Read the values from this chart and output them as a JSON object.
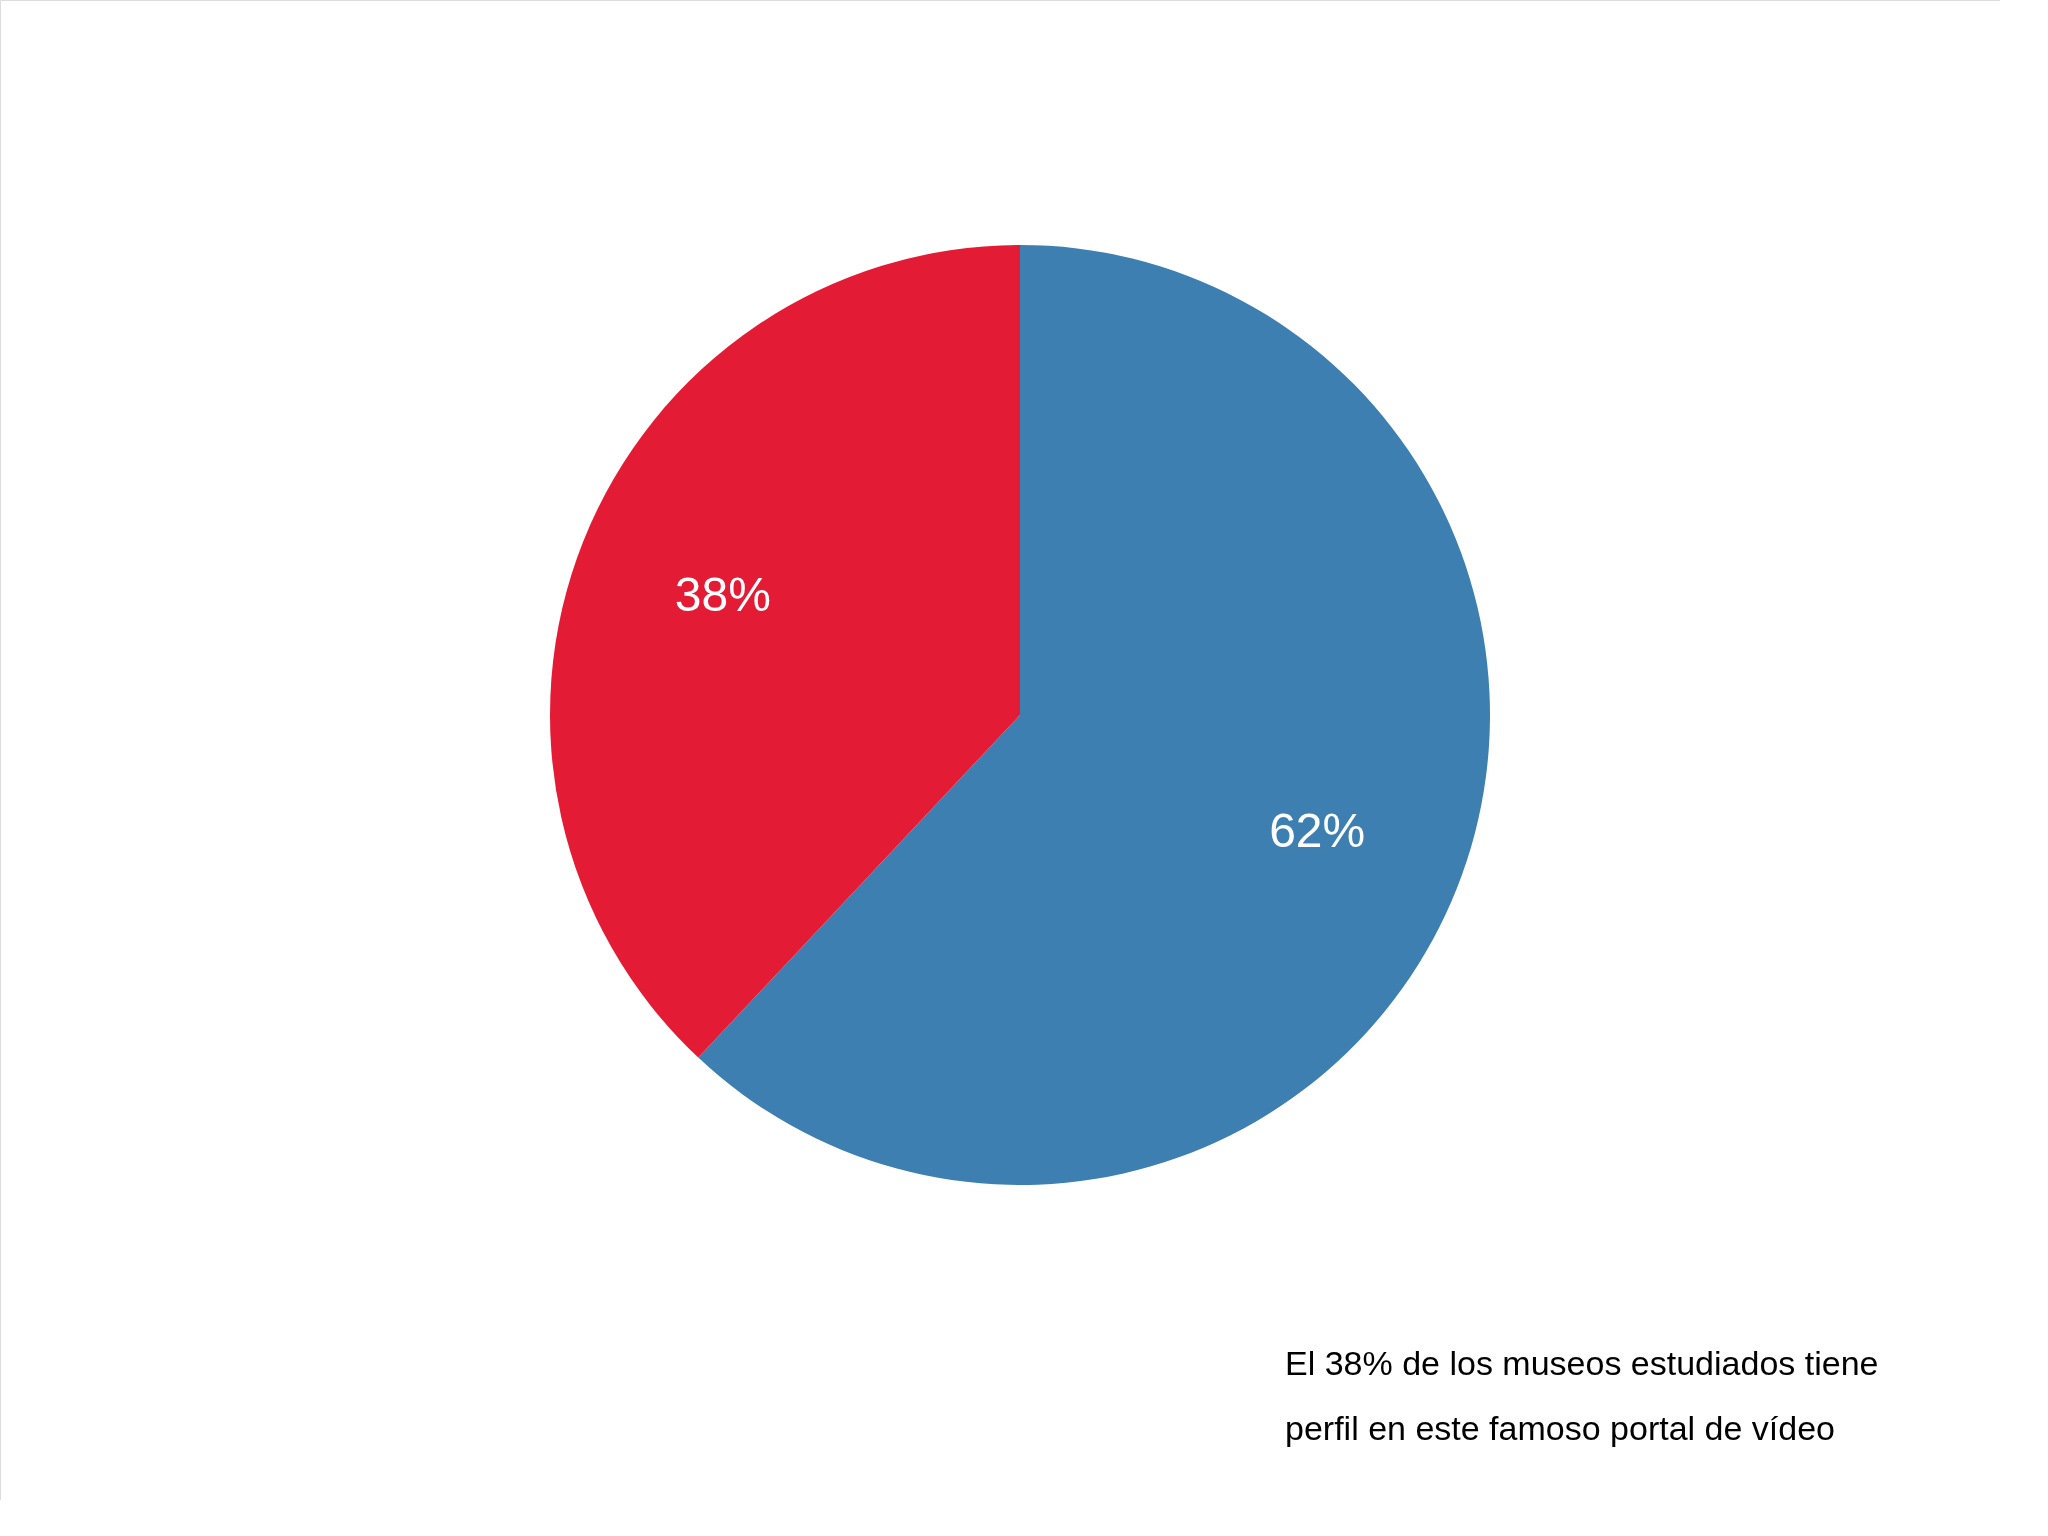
{
  "chart_data": {
    "type": "pie",
    "categories": [
      null,
      null
    ],
    "values": [
      62,
      38
    ],
    "colors": [
      "#3d7fb0",
      "#e31b35"
    ],
    "value_labels": [
      "62%",
      "38%"
    ],
    "legend": false,
    "annotations": [
      "El 38% de los museos estudiados tiene perfil en este famoso portal de vídeo"
    ]
  }
}
